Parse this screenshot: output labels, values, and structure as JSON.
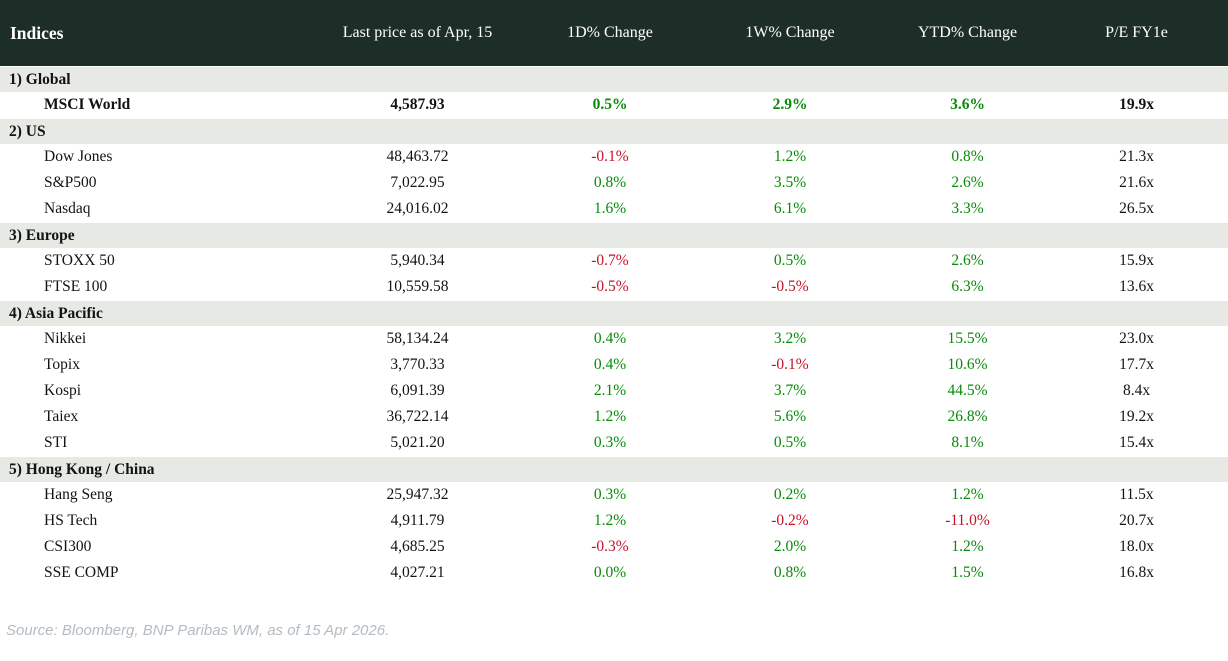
{
  "chart_data": {
    "type": "table",
    "title": "Indices",
    "columns": [
      "Indices",
      "Last price as of Apr, 15",
      "1D% Change",
      "1W% Change",
      "YTD% Change",
      "P/E FY1e"
    ],
    "sections": [
      {
        "label": "1) Global",
        "rows": [
          {
            "name": "MSCI World",
            "bold": true,
            "values": [
              "4,587.93",
              "0.5%",
              "2.9%",
              "3.6%",
              "19.9x"
            ]
          }
        ]
      },
      {
        "label": "2) US",
        "rows": [
          {
            "name": "Dow Jones",
            "bold": false,
            "values": [
              "48,463.72",
              "-0.1%",
              "1.2%",
              "0.8%",
              "21.3x"
            ]
          },
          {
            "name": "S&P500",
            "bold": false,
            "values": [
              "7,022.95",
              "0.8%",
              "3.5%",
              "2.6%",
              "21.6x"
            ]
          },
          {
            "name": "Nasdaq",
            "bold": false,
            "values": [
              "24,016.02",
              "1.6%",
              "6.1%",
              "3.3%",
              "26.5x"
            ]
          }
        ]
      },
      {
        "label": "3) Europe",
        "rows": [
          {
            "name": "STOXX 50",
            "bold": false,
            "values": [
              "5,940.34",
              "-0.7%",
              "0.5%",
              "2.6%",
              "15.9x"
            ]
          },
          {
            "name": "FTSE 100",
            "bold": false,
            "values": [
              "10,559.58",
              "-0.5%",
              "-0.5%",
              "6.3%",
              "13.6x"
            ]
          }
        ]
      },
      {
        "label": "4) Asia Pacific",
        "rows": [
          {
            "name": "Nikkei",
            "bold": false,
            "values": [
              "58,134.24",
              "0.4%",
              "3.2%",
              "15.5%",
              "23.0x"
            ]
          },
          {
            "name": "Topix",
            "bold": false,
            "values": [
              "3,770.33",
              "0.4%",
              "-0.1%",
              "10.6%",
              "17.7x"
            ]
          },
          {
            "name": "Kospi",
            "bold": false,
            "values": [
              "6,091.39",
              "2.1%",
              "3.7%",
              "44.5%",
              "8.4x"
            ]
          },
          {
            "name": "Taiex",
            "bold": false,
            "values": [
              "36,722.14",
              "1.2%",
              "5.6%",
              "26.8%",
              "19.2x"
            ]
          },
          {
            "name": "STI",
            "bold": false,
            "values": [
              "5,021.20",
              "0.3%",
              "0.5%",
              "8.1%",
              "15.4x"
            ]
          }
        ]
      },
      {
        "label": "5) Hong Kong / China",
        "rows": [
          {
            "name": "Hang Seng",
            "bold": false,
            "values": [
              "25,947.32",
              "0.3%",
              "0.2%",
              "1.2%",
              "11.5x"
            ]
          },
          {
            "name": "HS Tech",
            "bold": false,
            "values": [
              "4,911.79",
              "1.2%",
              "-0.2%",
              "-11.0%",
              "20.7x"
            ]
          },
          {
            "name": "CSI300",
            "bold": false,
            "values": [
              "4,685.25",
              "-0.3%",
              "2.0%",
              "1.2%",
              "18.0x"
            ]
          },
          {
            "name": "SSE COMP",
            "bold": false,
            "values": [
              "4,027.21",
              "0.0%",
              "0.8%",
              "1.5%",
              "16.8x"
            ]
          }
        ]
      }
    ],
    "footer": "Source: Bloomberg, BNP Paribas WM, as of 15 Apr 2026."
  },
  "colors": {
    "header_bg": "#1d2e29",
    "header_text": "#ffffff",
    "section_bg": "#e6e9e4",
    "positive": "#068c06",
    "negative": "#c3132a",
    "neutral_text": "#131313",
    "source_text": "#b3bcc2"
  }
}
